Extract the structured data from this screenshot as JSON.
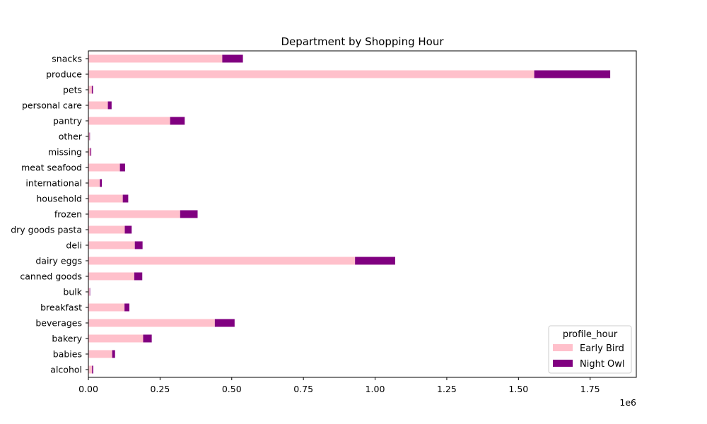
{
  "chart_data": {
    "type": "bar",
    "orientation": "horizontal",
    "stacked": true,
    "title": "Department by Shopping Hour",
    "xlabel": "",
    "ylabel": "",
    "x_offset_label": "1e6",
    "xlim": [
      0,
      1911000
    ],
    "x_ticks": [
      {
        "value": 0,
        "label": "0.00"
      },
      {
        "value": 250000,
        "label": "0.25"
      },
      {
        "value": 500000,
        "label": "0.50"
      },
      {
        "value": 750000,
        "label": "0.75"
      },
      {
        "value": 1000000,
        "label": "1.00"
      },
      {
        "value": 1250000,
        "label": "1.25"
      },
      {
        "value": 1500000,
        "label": "1.50"
      },
      {
        "value": 1750000,
        "label": "1.75"
      }
    ],
    "categories": [
      "alcohol",
      "babies",
      "bakery",
      "beverages",
      "breakfast",
      "bulk",
      "canned goods",
      "dairy eggs",
      "deli",
      "dry goods pasta",
      "frozen",
      "household",
      "international",
      "meat seafood",
      "missing",
      "other",
      "pantry",
      "personal care",
      "pets",
      "produce",
      "snacks"
    ],
    "series": [
      {
        "name": "Early Bird",
        "color": "#ffc0cb",
        "values": [
          13000,
          83000,
          191000,
          441000,
          126000,
          4500,
          160000,
          930000,
          162000,
          127000,
          320000,
          120000,
          40000,
          110000,
          7000,
          4000,
          285000,
          68000,
          12000,
          1555000,
          467000
        ]
      },
      {
        "name": "Night Owl",
        "color": "#800080",
        "values": [
          4000,
          10000,
          30000,
          69000,
          17000,
          1500,
          28000,
          140000,
          27000,
          24000,
          61000,
          19000,
          7000,
          18000,
          3000,
          1500,
          51000,
          13000,
          4000,
          265000,
          72000
        ]
      }
    ],
    "legend": {
      "title": "profile_hour",
      "placement": "lower right"
    },
    "grid": false
  }
}
